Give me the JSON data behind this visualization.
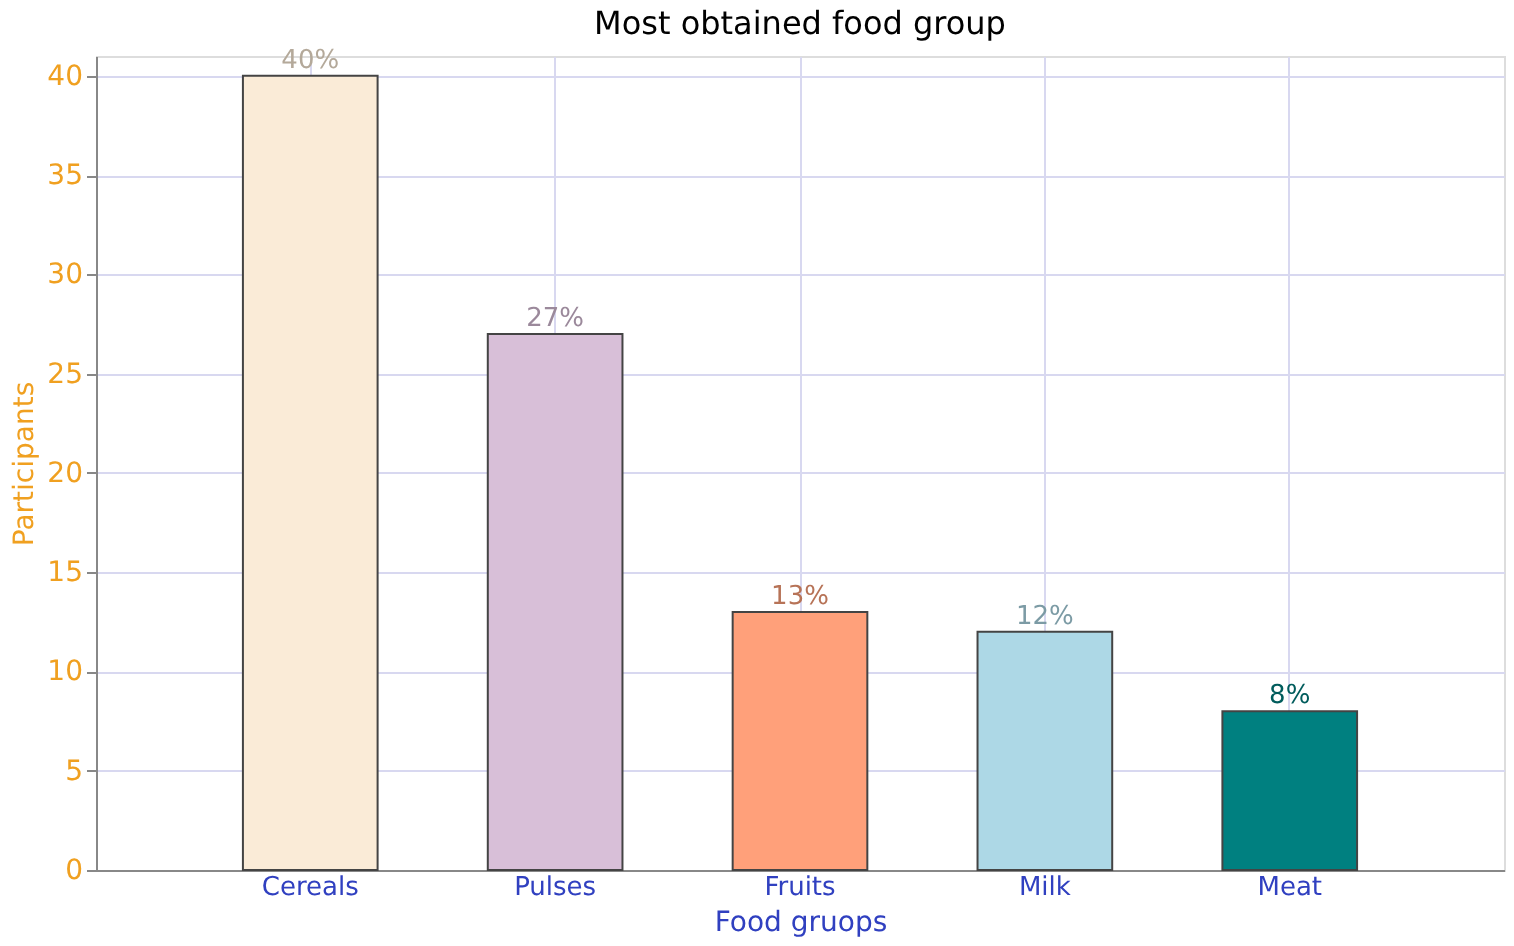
{
  "chart_data": {
    "type": "bar",
    "title": "Most obtained food group",
    "xlabel": "Food gruops",
    "ylabel": "Participants",
    "categories": [
      "Cereals",
      "Pulses",
      "Fruits",
      "Milk",
      "Meat"
    ],
    "values": [
      40,
      27,
      13,
      12,
      8
    ],
    "colors": [
      "#faebd7",
      "#d8bfd8",
      "#ffa07a",
      "#add8e6",
      "#008080"
    ],
    "value_labels": [
      "40%",
      "27%",
      "13%",
      "12%",
      "8%"
    ],
    "ylim": [
      0,
      41
    ],
    "yticks": [
      0,
      5,
      10,
      15,
      20,
      25,
      30,
      35,
      40
    ],
    "grid": true,
    "legend": false
  }
}
